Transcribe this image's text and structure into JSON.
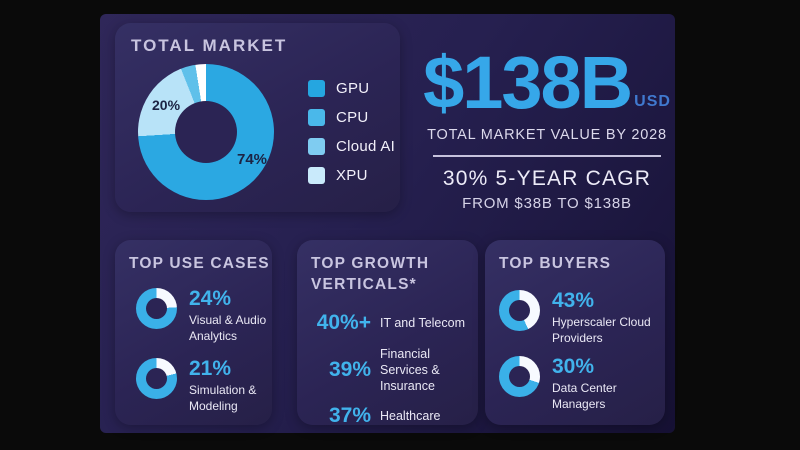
{
  "palette": {
    "letterbox": "#0a0a0a",
    "slide_bg": "#262050",
    "card_bg": "#2b2454",
    "heading": "#c8c4df",
    "text": "#eae8f5",
    "accent_blue": "#36a7e9",
    "usd_blue": "#4079cf",
    "pie_label_dark": "#1c2444",
    "ring_fill": "#f7faff",
    "ring_accent": "#3ab0e8"
  },
  "total_market": {
    "title": "TOTAL MARKET",
    "legend": [
      {
        "label": "GPU",
        "color": "#25a6e0"
      },
      {
        "label": "CPU",
        "color": "#4ab8ea"
      },
      {
        "label": "Cloud AI",
        "color": "#7fccf1"
      },
      {
        "label": "XPU",
        "color": "#c9eafb"
      }
    ],
    "donut": {
      "segments": [
        {
          "name": "GPU",
          "value": 74,
          "color": "#2ba8e2",
          "label": "74%"
        },
        {
          "name": "CPU",
          "value": 20,
          "color": "#b8e3f8",
          "label": "20%"
        },
        {
          "name": "Cloud AI",
          "value": 3.5,
          "color": "#5fc0ea",
          "label": ""
        },
        {
          "name": "XPU",
          "value": 2.5,
          "color": "#ffffff",
          "label": ""
        }
      ]
    }
  },
  "headline": {
    "value": "$138B",
    "currency": "USD",
    "caption": "TOTAL MARKET VALUE BY 2028",
    "cagr": "30% 5-YEAR CAGR",
    "cagr_detail": "FROM $38B TO $138B"
  },
  "cards": {
    "use_cases": {
      "title": "TOP USE CASES",
      "stats": [
        {
          "pct": "24%",
          "value": 24,
          "label": "Visual & Audio Analytics"
        },
        {
          "pct": "21%",
          "value": 21,
          "label": "Simulation & Modeling"
        }
      ]
    },
    "growth_verticals": {
      "title": "TOP GROWTH VERTICALS*",
      "stats": [
        {
          "pct": "40%+",
          "label": "IT and Telecom"
        },
        {
          "pct": "39%",
          "label": "Financial Services & Insurance"
        },
        {
          "pct": "37%",
          "label": "Healthcare"
        }
      ]
    },
    "buyers": {
      "title": "TOP BUYERS",
      "stats": [
        {
          "pct": "43%",
          "value": 43,
          "label": "Hyperscaler Cloud Providers"
        },
        {
          "pct": "30%",
          "value": 30,
          "label": "Data Center Managers"
        }
      ]
    }
  },
  "chart_data": [
    {
      "type": "pie",
      "title": "TOTAL MARKET",
      "labels": [
        "GPU",
        "CPU",
        "Cloud AI",
        "XPU"
      ],
      "values": [
        74,
        20,
        3.5,
        2.5
      ],
      "shown_data_labels": [
        "74%",
        "20%"
      ],
      "legend_position": "right",
      "style": "donut, starts at 12 o'clock clockwise; Cloud AI and XPU sliver values estimated"
    },
    {
      "type": "table",
      "title": "TOP USE CASES",
      "rows": [
        [
          "24%",
          "Visual & Audio Analytics"
        ],
        [
          "21%",
          "Simulation & Modeling"
        ]
      ]
    },
    {
      "type": "table",
      "title": "TOP GROWTH VERTICALS*",
      "rows": [
        [
          "40%+",
          "IT and Telecom"
        ],
        [
          "39%",
          "Financial Services & Insurance"
        ],
        [
          "37%",
          "Healthcare"
        ]
      ]
    },
    {
      "type": "table",
      "title": "TOP BUYERS",
      "rows": [
        [
          "43%",
          "Hyperscaler Cloud Providers"
        ],
        [
          "30%",
          "Data Center Managers"
        ]
      ]
    }
  ]
}
